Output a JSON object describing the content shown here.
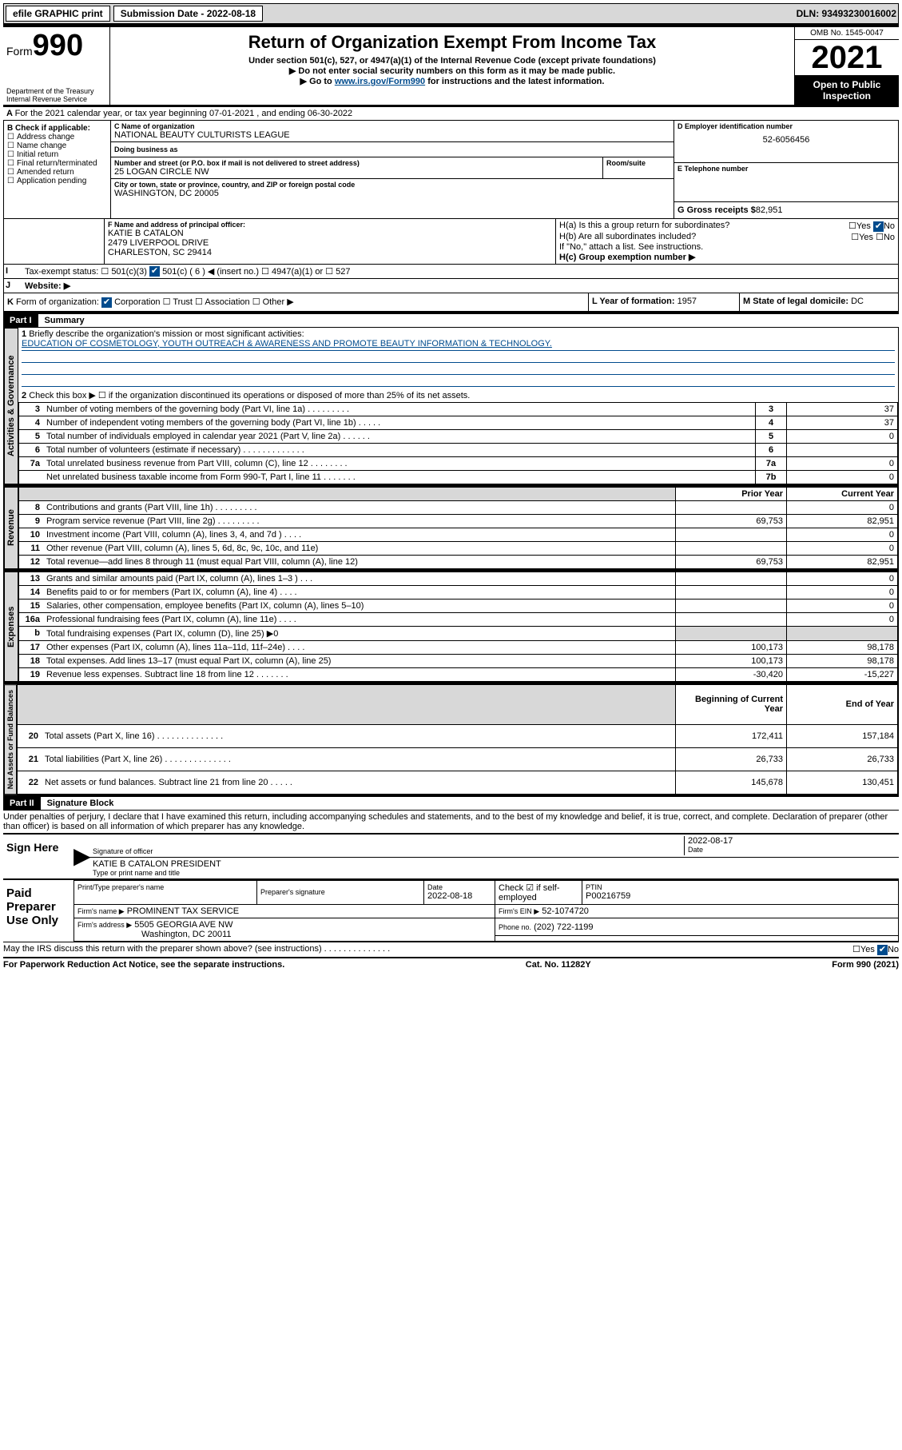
{
  "topbar": {
    "efile": "efile GRAPHIC print",
    "submission_label": "Submission Date - 2022-08-18",
    "dln": "DLN: 93493230016002"
  },
  "header": {
    "form_prefix": "Form",
    "form_number": "990",
    "title": "Return of Organization Exempt From Income Tax",
    "subtitle": "Under section 501(c), 527, or 4947(a)(1) of the Internal Revenue Code (except private foundations)",
    "note1": "▶ Do not enter social security numbers on this form as it may be made public.",
    "note2_pre": "▶ Go to ",
    "note2_link": "www.irs.gov/Form990",
    "note2_post": " for instructions and the latest information.",
    "dept": "Department of the Treasury",
    "irs": "Internal Revenue Service",
    "omb": "OMB No. 1545-0047",
    "year": "2021",
    "open": "Open to Public Inspection"
  },
  "lineA": "For the 2021 calendar year, or tax year beginning 07-01-2021   , and ending 06-30-2022",
  "boxB": {
    "title": "B Check if applicable:",
    "items": [
      "Address change",
      "Name change",
      "Initial return",
      "Final return/terminated",
      "Amended return",
      "Application pending"
    ]
  },
  "boxC": {
    "name_label": "C Name of organization",
    "name": "NATIONAL BEAUTY CULTURISTS LEAGUE",
    "dba_label": "Doing business as",
    "addr_label": "Number and street (or P.O. box if mail is not delivered to street address)",
    "room_label": "Room/suite",
    "addr": "25 LOGAN CIRCLE NW",
    "city_label": "City or town, state or province, country, and ZIP or foreign postal code",
    "city": "WASHINGTON, DC  20005"
  },
  "boxD": {
    "label": "D Employer identification number",
    "value": "52-6056456"
  },
  "boxE": {
    "label": "E Telephone number",
    "value": ""
  },
  "boxG": {
    "label": "G Gross receipts $",
    "value": "82,951"
  },
  "boxF": {
    "label": "F  Name and address of principal officer:",
    "name": "KATIE B CATALON",
    "addr1": "2479 LIVERPOOL DRIVE",
    "addr2": "CHARLESTON, SC  29414"
  },
  "boxH": {
    "a": "H(a)  Is this a group return for subordinates?",
    "b": "H(b)  Are all subordinates included?",
    "note": "If \"No,\" attach a list. See instructions.",
    "c": "H(c)  Group exemption number ▶"
  },
  "yesno": {
    "yes": "Yes",
    "no": "No"
  },
  "lineI": {
    "label": "I",
    "text": "Tax-exempt status:",
    "opt1": "501(c)(3)",
    "opt2": "501(c) ( 6 ) ◀ (insert no.)",
    "opt3": "4947(a)(1) or",
    "opt4": "527"
  },
  "lineJ": {
    "label": "J",
    "text": "Website: ▶"
  },
  "lineK": {
    "label": "K",
    "text": "Form of organization:",
    "opts": [
      "Corporation",
      "Trust",
      "Association",
      "Other ▶"
    ]
  },
  "lineL": {
    "label": "L Year of formation:",
    "value": "1957"
  },
  "lineM": {
    "label": "M State of legal domicile:",
    "value": "DC"
  },
  "part1": {
    "hdr": "Part I",
    "title": "Summary"
  },
  "section_labels": {
    "activities": "Activities & Governance",
    "revenue": "Revenue",
    "expenses": "Expenses",
    "netassets": "Net Assets or Fund Balances"
  },
  "summary": {
    "l1": "Briefly describe the organization's mission or most significant activities:",
    "mission": "EDUCATION OF COSMETOLOGY, YOUTH OUTREACH & AWARENESS AND PROMOTE BEAUTY INFORMATION & TECHNOLOGY.",
    "l2": "Check this box ▶ ☐  if the organization discontinued its operations or disposed of more than 25% of its net assets.",
    "rows_gov": [
      {
        "n": "3",
        "d": "Number of voting members of the governing body (Part VI, line 1a)   .    .    .    .    .    .    .    .    .",
        "box": "3",
        "v": "37"
      },
      {
        "n": "4",
        "d": "Number of independent voting members of the governing body (Part VI, line 1b)   .    .    .    .    .",
        "box": "4",
        "v": "37"
      },
      {
        "n": "5",
        "d": "Total number of individuals employed in calendar year 2021 (Part V, line 2a)   .    .    .    .    .    .",
        "box": "5",
        "v": "0"
      },
      {
        "n": "6",
        "d": "Total number of volunteers (estimate if necessary)   .    .    .    .    .    .    .    .    .    .    .    .    .",
        "box": "6",
        "v": ""
      },
      {
        "n": "7a",
        "d": "Total unrelated business revenue from Part VIII, column (C), line 12   .    .    .    .    .    .    .    .",
        "box": "7a",
        "v": "0"
      },
      {
        "n": "",
        "d": "Net unrelated business taxable income from Form 990-T, Part I, line 11   .    .    .    .    .    .    .",
        "box": "7b",
        "v": "0"
      }
    ],
    "col_prior": "Prior Year",
    "col_current": "Current Year",
    "rows_rev": [
      {
        "n": "8",
        "d": "Contributions and grants (Part VIII, line 1h)   .    .    .    .    .    .    .    .    .",
        "p": "",
        "c": "0"
      },
      {
        "n": "9",
        "d": "Program service revenue (Part VIII, line 2g)   .    .    .    .    .    .    .    .    .",
        "p": "69,753",
        "c": "82,951"
      },
      {
        "n": "10",
        "d": "Investment income (Part VIII, column (A), lines 3, 4, and 7d )   .    .    .    .",
        "p": "",
        "c": "0"
      },
      {
        "n": "11",
        "d": "Other revenue (Part VIII, column (A), lines 5, 6d, 8c, 9c, 10c, and 11e)",
        "p": "",
        "c": "0"
      },
      {
        "n": "12",
        "d": "Total revenue—add lines 8 through 11 (must equal Part VIII, column (A), line 12)",
        "p": "69,753",
        "c": "82,951"
      }
    ],
    "rows_exp": [
      {
        "n": "13",
        "d": "Grants and similar amounts paid (Part IX, column (A), lines 1–3 )    .    .    .",
        "p": "",
        "c": "0"
      },
      {
        "n": "14",
        "d": "Benefits paid to or for members (Part IX, column (A), line 4)   .    .    .    .",
        "p": "",
        "c": "0"
      },
      {
        "n": "15",
        "d": "Salaries, other compensation, employee benefits (Part IX, column (A), lines 5–10)",
        "p": "",
        "c": "0"
      },
      {
        "n": "16a",
        "d": "Professional fundraising fees (Part IX, column (A), line 11e)    .    .    .    .",
        "p": "",
        "c": "0"
      },
      {
        "n": "b",
        "d": "Total fundraising expenses (Part IX, column (D), line 25) ▶0",
        "p": "shade",
        "c": "shade"
      },
      {
        "n": "17",
        "d": "Other expenses (Part IX, column (A), lines 11a–11d, 11f–24e)    .    .    .    .",
        "p": "100,173",
        "c": "98,178"
      },
      {
        "n": "18",
        "d": "Total expenses. Add lines 13–17 (must equal Part IX, column (A), line 25)",
        "p": "100,173",
        "c": "98,178"
      },
      {
        "n": "19",
        "d": "Revenue less expenses. Subtract line 18 from line 12   .    .    .    .    .    .    .",
        "p": "-30,420",
        "c": "-15,227"
      }
    ],
    "col_begin": "Beginning of Current Year",
    "col_end": "End of Year",
    "rows_net": [
      {
        "n": "20",
        "d": "Total assets (Part X, line 16)   .    .    .    .    .    .    .    .    .    .    .    .    .    .",
        "p": "172,411",
        "c": "157,184"
      },
      {
        "n": "21",
        "d": "Total liabilities (Part X, line 26)   .    .    .    .    .    .    .    .    .    .    .    .    .    .",
        "p": "26,733",
        "c": "26,733"
      },
      {
        "n": "22",
        "d": "Net assets or fund balances. Subtract line 21 from line 20   .    .    .    .    .",
        "p": "145,678",
        "c": "130,451"
      }
    ]
  },
  "part2": {
    "hdr": "Part II",
    "title": "Signature Block"
  },
  "sig": {
    "declare": "Under penalties of perjury, I declare that I have examined this return, including accompanying schedules and statements, and to the best of my knowledge and belief, it is true, correct, and complete. Declaration of preparer (other than officer) is based on all information of which preparer has any knowledge.",
    "sign_here": "Sign Here",
    "sig_officer": "Signature of officer",
    "date_label": "Date",
    "date": "2022-08-17",
    "officer_name": "KATIE B CATALON  PRESIDENT",
    "type_name": "Type or print name and title",
    "paid": "Paid Preparer Use Only",
    "prep_name_label": "Print/Type preparer's name",
    "prep_sig_label": "Preparer's signature",
    "prep_date_label": "Date",
    "prep_date": "2022-08-18",
    "self_emp": "Check ☑ if self-employed",
    "ptin_label": "PTIN",
    "ptin": "P00216759",
    "firm_name_label": "Firm's name    ▶",
    "firm_name": "PROMINENT TAX SERVICE",
    "firm_ein_label": "Firm's EIN ▶",
    "firm_ein": "52-1074720",
    "firm_addr_label": "Firm's address ▶",
    "firm_addr1": "5505 GEORGIA AVE NW",
    "firm_addr2": "Washington, DC  20011",
    "phone_label": "Phone no.",
    "phone": "(202) 722-1199",
    "may_discuss": "May the IRS discuss this return with the preparer shown above? (see instructions)   .    .    .    .    .    .    .    .    .    .    .    .    .    ."
  },
  "footer": {
    "pra": "For Paperwork Reduction Act Notice, see the separate instructions.",
    "cat": "Cat. No. 11282Y",
    "form": "Form 990 (2021)"
  }
}
